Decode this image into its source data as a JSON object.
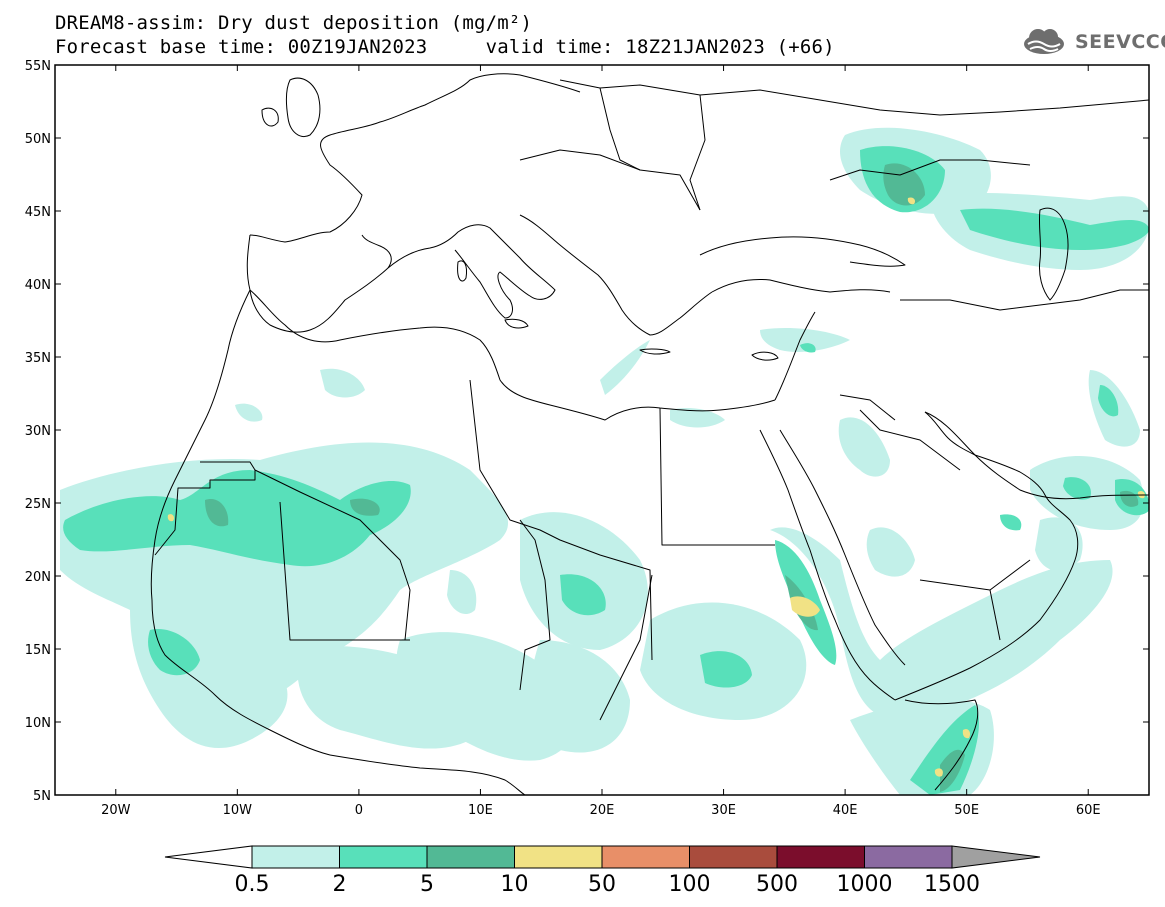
{
  "header": {
    "title_line1": "DREAM8-assim: Dry dust deposition (mg/m²)",
    "title_line2": "Forecast base time: 00Z19JAN2023     valid time: 18Z21JAN2023 (+66)",
    "logo_text": "SEEVCCC"
  },
  "map": {
    "lon_range": [
      -25,
      65
    ],
    "lat_range": [
      5,
      55
    ],
    "lat_ticks": [
      "55N",
      "50N",
      "45N",
      "40N",
      "35N",
      "30N",
      "25N",
      "20N",
      "15N",
      "10N",
      "5N"
    ],
    "lon_ticks": [
      "20W",
      "10W",
      "0",
      "10E",
      "20E",
      "30E",
      "40E",
      "50E",
      "60E"
    ]
  },
  "colorbar": {
    "labels": [
      "0.5",
      "2",
      "5",
      "10",
      "50",
      "100",
      "500",
      "1000",
      "1500"
    ],
    "colors": [
      "#c2f0e9",
      "#58e0ba",
      "#52b995",
      "#f1e285",
      "#e88f68",
      "#a94c3d",
      "#7b0d2c",
      "#8b6aa1"
    ],
    "under_color": "#ffffff",
    "over_color": "#a0a0a0"
  }
}
